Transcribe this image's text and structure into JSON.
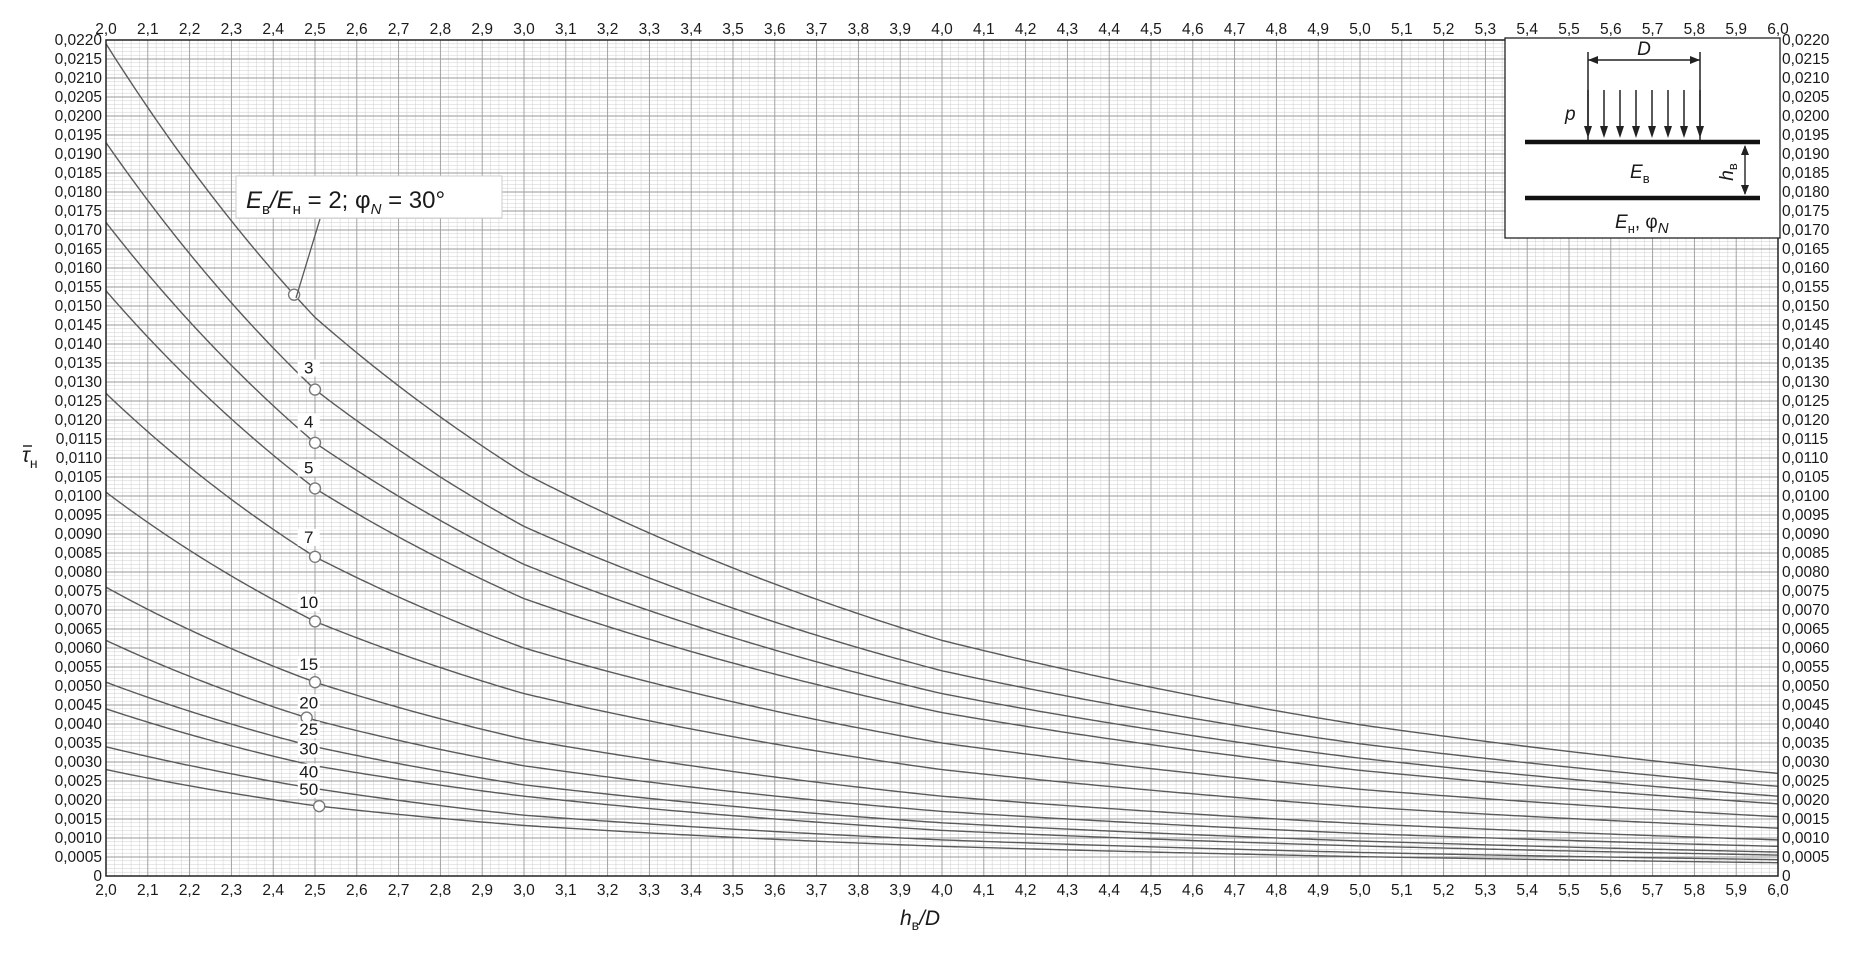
{
  "chart_data": {
    "type": "line",
    "xlabel": "h/D",
    "xlabel_parts": {
      "main": "h",
      "sub": "в",
      "rest": "/D"
    },
    "ylabel_parts": {
      "main": "τ",
      "sub": "н"
    },
    "xlim": [
      2.0,
      6.0
    ],
    "ylim": [
      0,
      0.022
    ],
    "x_ticks": [
      "2,0",
      "2,1",
      "2,2",
      "2,3",
      "2,4",
      "2,5",
      "2,6",
      "2,7",
      "2,8",
      "2,9",
      "3,0",
      "3,1",
      "3,2",
      "3,3",
      "3,4",
      "3,5",
      "3,6",
      "3,7",
      "3,8",
      "3,9",
      "4,0",
      "4,1",
      "4,2",
      "4,3",
      "4,4",
      "4,5",
      "4,6",
      "4,7",
      "4,8",
      "4,9",
      "5,0",
      "5,1",
      "5,2",
      "5,3",
      "5,4",
      "5,5",
      "5,6",
      "5,7",
      "5,8",
      "5,9",
      "6,0"
    ],
    "y_ticks": [
      "0",
      "0,0005",
      "0,0010",
      "0,0015",
      "0,0020",
      "0,0025",
      "0,0030",
      "0,0035",
      "0,0040",
      "0,0045",
      "0,0050",
      "0,0055",
      "0,0060",
      "0,0065",
      "0,0070",
      "0,0075",
      "0,0080",
      "0,0085",
      "0,0090",
      "0,0095",
      "0,0100",
      "0,0105",
      "0,0110",
      "0,0115",
      "0,0120",
      "0,0125",
      "0,0130",
      "0,0135",
      "0,0140",
      "0,0145",
      "0,0150",
      "0,0155",
      "0,0160",
      "0,0165",
      "0,0170",
      "0,0175",
      "0,0180",
      "0,0185",
      "0,0190",
      "0,0195",
      "0,0200",
      "0,0205",
      "0,0210",
      "0,0215",
      "0,0220"
    ],
    "grid": true,
    "annotation": {
      "parts": [
        "E",
        "в",
        "/E",
        "н",
        " = 2; φ",
        "N",
        " = 30°"
      ]
    },
    "series": [
      {
        "name": "2",
        "x": [
          2.0,
          2.5,
          3.0,
          4.0,
          5.0,
          6.0
        ],
        "y": [
          0.0219,
          0.0147,
          0.0106,
          0.0062,
          0.00398,
          0.0027
        ],
        "marker_x": 2.45,
        "label_x": 2.45,
        "label_y": 0.0155
      },
      {
        "name": "3",
        "x": [
          2.0,
          2.5,
          3.0,
          4.0,
          5.0,
          6.0
        ],
        "y": [
          0.0193,
          0.0128,
          0.0092,
          0.0054,
          0.00348,
          0.00236
        ],
        "marker_x": 2.5
      },
      {
        "name": "4",
        "x": [
          2.0,
          2.5,
          3.0,
          4.0,
          5.0,
          6.0
        ],
        "y": [
          0.0172,
          0.0114,
          0.0082,
          0.0048,
          0.0031,
          0.0021
        ],
        "marker_x": 2.5
      },
      {
        "name": "5",
        "x": [
          2.0,
          2.5,
          3.0,
          4.0,
          5.0,
          6.0
        ],
        "y": [
          0.0154,
          0.0102,
          0.0073,
          0.0043,
          0.00278,
          0.0019
        ],
        "marker_x": 2.5
      },
      {
        "name": "7",
        "x": [
          2.0,
          2.5,
          3.0,
          4.0,
          5.0,
          6.0
        ],
        "y": [
          0.0127,
          0.0084,
          0.006,
          0.0035,
          0.00228,
          0.00156
        ],
        "marker_x": 2.5
      },
      {
        "name": "10",
        "x": [
          2.0,
          2.5,
          3.0,
          4.0,
          5.0,
          6.0
        ],
        "y": [
          0.0101,
          0.0067,
          0.0048,
          0.0028,
          0.00182,
          0.00126
        ],
        "marker_x": 2.5
      },
      {
        "name": "15",
        "x": [
          2.0,
          2.5,
          3.0,
          4.0,
          5.0,
          6.0
        ],
        "y": [
          0.0076,
          0.0051,
          0.0036,
          0.0021,
          0.00138,
          0.00095
        ],
        "marker_x": 2.5
      },
      {
        "name": "20",
        "x": [
          2.0,
          2.5,
          3.0,
          4.0,
          5.0,
          6.0
        ],
        "y": [
          0.0062,
          0.0041,
          0.0029,
          0.0017,
          0.00112,
          0.00078
        ],
        "marker_x": 2.48
      },
      {
        "name": "25",
        "x": [
          2.0,
          2.5,
          3.0,
          4.0,
          5.0,
          6.0
        ],
        "y": [
          0.0051,
          0.0034,
          0.0024,
          0.0014,
          0.00092,
          0.00063
        ]
      },
      {
        "name": "30",
        "x": [
          2.0,
          2.5,
          3.0,
          4.0,
          5.0,
          6.0
        ],
        "y": [
          0.0044,
          0.0029,
          0.0021,
          0.0012,
          0.00079,
          0.00055
        ]
      },
      {
        "name": "40",
        "x": [
          2.0,
          2.5,
          3.0,
          4.0,
          5.0,
          6.0
        ],
        "y": [
          0.0034,
          0.0023,
          0.0016,
          0.00095,
          0.00062,
          0.00043
        ]
      },
      {
        "name": "50",
        "x": [
          2.0,
          2.5,
          3.0,
          4.0,
          5.0,
          6.0
        ],
        "y": [
          0.0028,
          0.00185,
          0.00133,
          0.00078,
          0.00051,
          0.00035
        ],
        "marker_x": 2.51
      }
    ]
  },
  "inset": {
    "D": "D",
    "p": "p",
    "h_main": "h",
    "h_sub": "в",
    "Eb_main": "E",
    "Eb_sub": "в",
    "En_main": "E",
    "En_sub": "н",
    "phi": ", φ",
    "phi_sub": "N"
  },
  "colors": {
    "curve": "#5a5a5a",
    "grid_major": "#9a9a9a",
    "grid_minor": "#cfcfcf",
    "axis": "#222222"
  }
}
